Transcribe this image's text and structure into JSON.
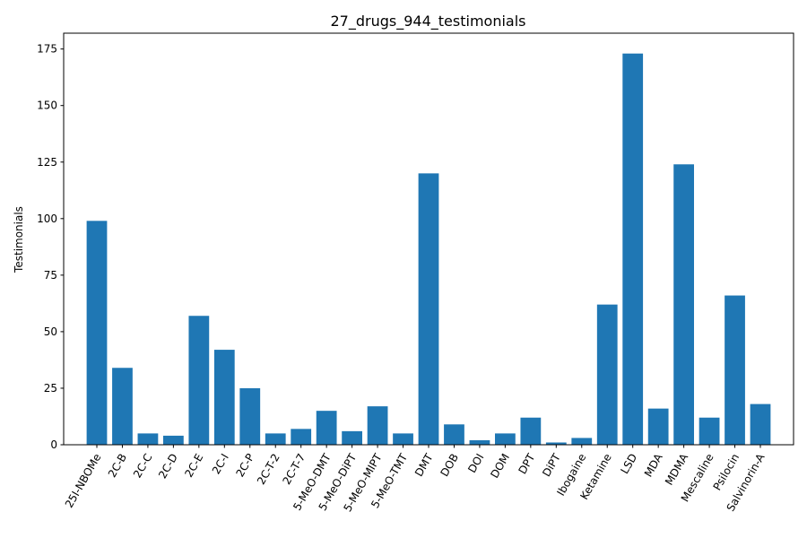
{
  "chart_data": {
    "type": "bar",
    "title": "27_drugs_944_testimonials",
    "xlabel": "",
    "ylabel": "Testimonials",
    "ylim": [
      0,
      182
    ],
    "yticks": [
      0,
      25,
      50,
      75,
      100,
      125,
      150,
      175
    ],
    "grid": false,
    "bar_color": "#1f77b4",
    "categories": [
      "25I-NBOMe",
      "2C-B",
      "2C-C",
      "2C-D",
      "2C-E",
      "2C-I",
      "2C-P",
      "2C-T-2",
      "2C-T-7",
      "5-MeO-DMT",
      "5-MeO-DiPT",
      "5-MeO-MIPT",
      "5-MeO-TMT",
      "DMT",
      "DOB",
      "DOI",
      "DOM",
      "DPT",
      "DiPT",
      "Ibogaine",
      "Ketamine",
      "LSD",
      "MDA",
      "MDMA",
      "Mescaline",
      "Psilocin",
      "Salvinorin-A"
    ],
    "values": [
      99,
      34,
      5,
      4,
      57,
      42,
      25,
      5,
      7,
      15,
      6,
      17,
      5,
      120,
      9,
      2,
      5,
      12,
      1,
      3,
      62,
      173,
      16,
      124,
      12,
      66,
      18
    ]
  }
}
